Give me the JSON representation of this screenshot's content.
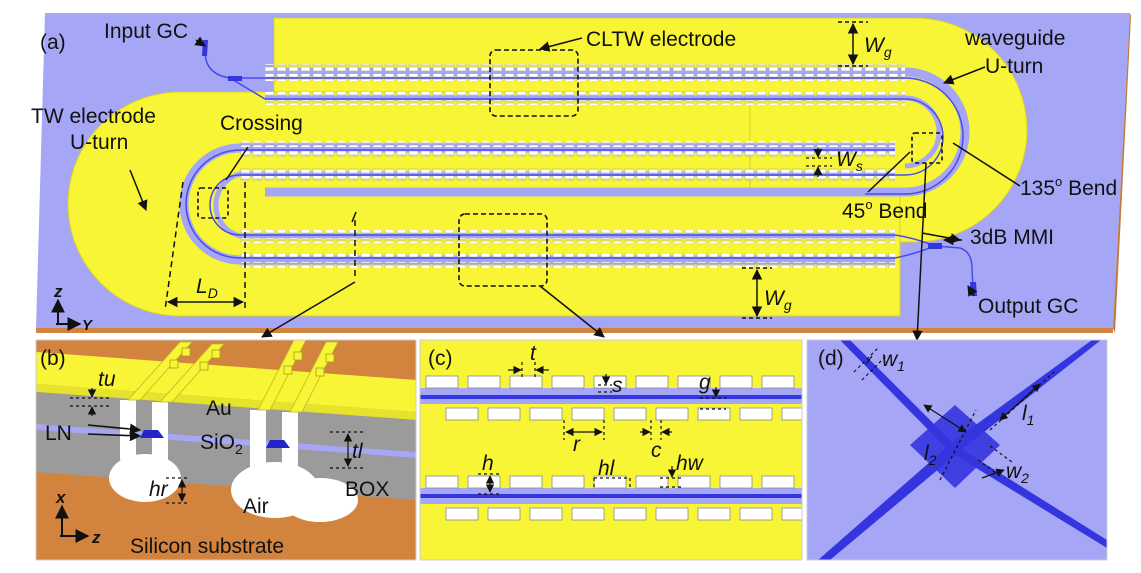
{
  "colors": {
    "gold": "#f8f436",
    "gold_dark": "#e2dd2a",
    "chip_blue": "#a6a6f6",
    "waveguide": "#3535e0",
    "box_grey": "#9b9b9b",
    "substrate": "#d2843e",
    "white": "#ffffff"
  },
  "panel_a": {
    "tag": "(a)",
    "input_gc": "Input GC",
    "cltw": "CLTW electrode",
    "waveguide_uturn_1": "waveguide",
    "waveguide_uturn_2": "U-turn",
    "tw_uturn_1": "TW electrode",
    "tw_uturn_2": "U-turn",
    "crossing": "Crossing",
    "wg_top": "W",
    "wg_top_sub": "g",
    "ws": "W",
    "ws_sub": "s",
    "bend135": "135",
    "bend135_sup": "o",
    "bend135_tail": " Bend",
    "bend45": "45",
    "bend45_sup": "o",
    "bend45_tail": " Bend",
    "mmi": "3dB MMI",
    "ld": "L",
    "ld_sub": "D",
    "wg_bottom": "W",
    "wg_bottom_sub": "g",
    "output_gc": "Output GC",
    "axis_z": "z",
    "axis_y": "Y"
  },
  "panel_b": {
    "tag": "(b)",
    "tu": "tu",
    "au": "Au",
    "ln": "LN",
    "sio2": "SiO",
    "sio2_sub": "2",
    "tl": "tl",
    "hr": "hr",
    "box": "BOX",
    "air": "Air",
    "axis_x": "x",
    "axis_z": "z",
    "substrate": "Silicon substrate"
  },
  "panel_c": {
    "tag": "(c)",
    "t": "t",
    "s": "s",
    "g": "g",
    "r": "r",
    "c": "c",
    "h": "h",
    "hl": "hl",
    "hw": "hw"
  },
  "panel_d": {
    "tag": "(d)",
    "w1": "w",
    "w1_sub": "1",
    "l2": "l",
    "l2_sub": "2",
    "l1": "l",
    "l1_sub": "1",
    "w2": "w",
    "w2_sub": "2"
  }
}
